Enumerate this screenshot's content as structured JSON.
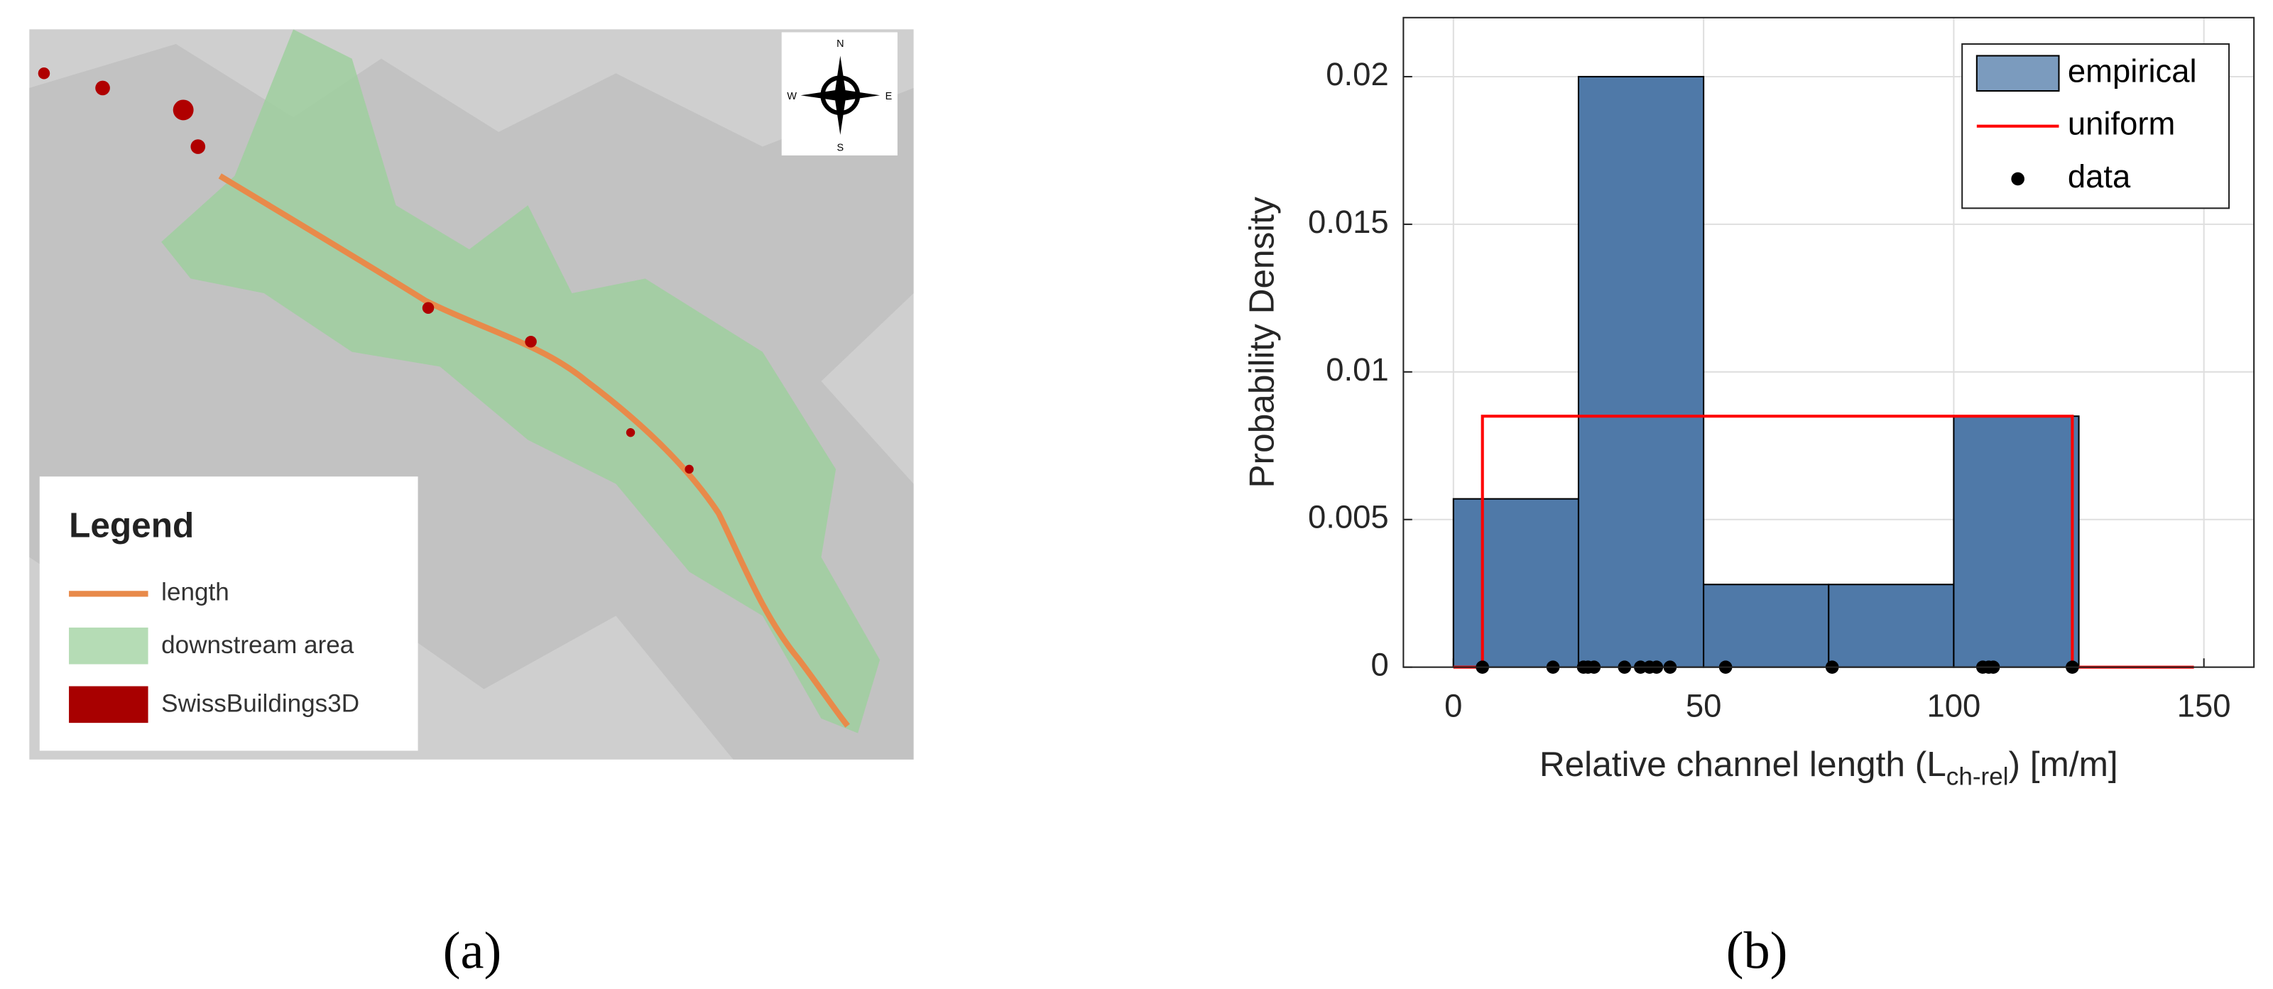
{
  "map": {
    "legend_title": "Legend",
    "legend_items": [
      "length",
      "downstream area",
      "SwissBuildings3D"
    ],
    "compass": [
      "N",
      "E",
      "S",
      "W"
    ],
    "caption": "(a)"
  },
  "chart_data": {
    "type": "histogram",
    "caption": "(b)",
    "xlabel": [
      "Relative channel length (L",
      "ch-rel",
      ") [m/m]"
    ],
    "ylabel": "Probability Density",
    "bins": [
      0,
      25,
      50,
      75,
      100,
      125
    ],
    "series": [
      {
        "name": "empirical",
        "type": "histogram",
        "color": "#4f79a8",
        "values": [
          0.0057,
          0.02,
          0.0028,
          0.0028,
          0.0085
        ]
      },
      {
        "name": "uniform",
        "type": "line",
        "color": "#ff0000",
        "x": [
          0,
          5.8,
          5.8,
          123.7,
          123.7,
          148
        ],
        "values": [
          0,
          0,
          0.0085,
          0.0085,
          0,
          0
        ]
      },
      {
        "name": "data",
        "type": "scatter",
        "color": "#000000",
        "x": [
          5.8,
          19.9,
          26,
          26.9,
          28.1,
          34.2,
          37.4,
          39.2,
          40.6,
          43.3,
          54.4,
          75.7,
          105.8,
          107,
          107.9,
          123.7
        ],
        "values": [
          0,
          0,
          0,
          0,
          0,
          0,
          0,
          0,
          0,
          0,
          0,
          0,
          0,
          0,
          0,
          0
        ]
      }
    ],
    "xlim": [
      -10,
      160
    ],
    "ylim": [
      0,
      0.022
    ],
    "xticks": [
      0,
      50,
      100,
      150
    ],
    "yticks": [
      0,
      0.005,
      0.01,
      0.015,
      0.02
    ],
    "grid": true,
    "legend": "northeast"
  }
}
